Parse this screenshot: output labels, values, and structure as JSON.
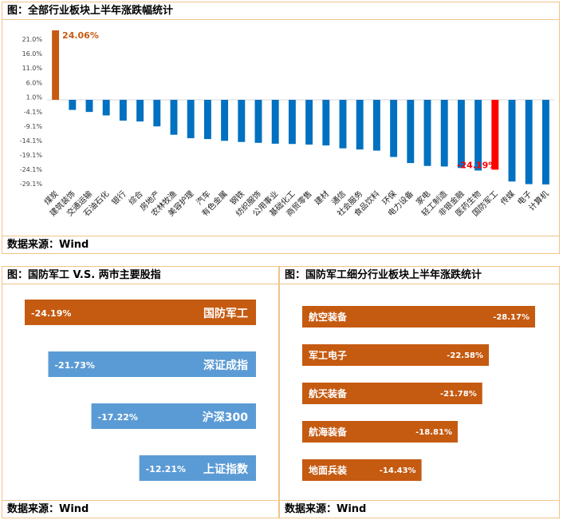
{
  "panel1": {
    "title": "图：全部行业板块上半年涨跌幅统计",
    "source": "数据来源：Wind"
  },
  "panel2": {
    "title": "图：国防军工 V.S. 两市主要股指",
    "source": "数据来源：Wind"
  },
  "panel3": {
    "title": "图：国防军工细分行业板块上半年涨跌统计",
    "source": "数据来源：Wind"
  },
  "colors": {
    "orange": "#c55a11",
    "blue": "#0070c0",
    "red": "#ff0000",
    "light_blue": "#5b9bd5"
  },
  "chart_data": [
    {
      "type": "bar",
      "title": "图：全部行业板块上半年涨跌幅统计",
      "y_ticks": [
        "21.0%",
        "16.0%",
        "11.0%",
        "6.0%",
        "1.0%",
        "-4.1%",
        "-9.1%",
        "-14.1%",
        "-19.1%",
        "-24.1%",
        "-29.1%"
      ],
      "ylim": [
        -31,
        26
      ],
      "categories": [
        "煤炭",
        "建筑装饰",
        "交通运输",
        "石油石化",
        "银行",
        "综合",
        "房地产",
        "农林牧渔",
        "美容护理",
        "汽车",
        "有色金属",
        "钢铁",
        "纺织服饰",
        "公用事业",
        "基础化工",
        "商贸零售",
        "建材",
        "通信",
        "社会服务",
        "食品饮料",
        "环保",
        "电力设备",
        "家电",
        "轻工制造",
        "非银金融",
        "医药生物",
        "国防军工",
        "传媒",
        "电子",
        "计算机"
      ],
      "values": [
        24.06,
        -3.5,
        -4.2,
        -5.4,
        -7.2,
        -7.5,
        -9.2,
        -12.1,
        -13.3,
        -13.6,
        -14.2,
        -14.6,
        -14.9,
        -15.2,
        -15.3,
        -15.5,
        -15.8,
        -16.8,
        -17.2,
        -17.6,
        -19.8,
        -21.9,
        -22.9,
        -23.1,
        -23.6,
        -24.5,
        -24.19,
        -28.3,
        -29.2,
        -29.3
      ],
      "labels": {
        "煤炭": "24.06%",
        "国防军工": "-24.19%"
      },
      "highlight": {
        "煤炭": "orange",
        "国防军工": "red"
      }
    },
    {
      "type": "bar",
      "orientation": "horizontal",
      "title": "图：国防军工 V.S. 两市主要股指",
      "categories": [
        "国防军工",
        "深证成指",
        "沪深300",
        "上证指数"
      ],
      "values": [
        -24.19,
        -21.73,
        -17.22,
        -12.21
      ],
      "labels": [
        "-24.19%",
        "-21.73%",
        "-17.22%",
        "-12.21%"
      ]
    },
    {
      "type": "bar",
      "orientation": "horizontal",
      "title": "图：国防军工细分行业板块上半年涨跌统计",
      "categories": [
        "航空装备",
        "军工电子",
        "航天装备",
        "航海装备",
        "地面兵装"
      ],
      "values": [
        -28.17,
        -22.58,
        -21.78,
        -18.81,
        -14.43
      ],
      "labels": [
        "-28.17%",
        "-22.58%",
        "-21.78%",
        "-18.81%",
        "-14.43%"
      ]
    }
  ]
}
